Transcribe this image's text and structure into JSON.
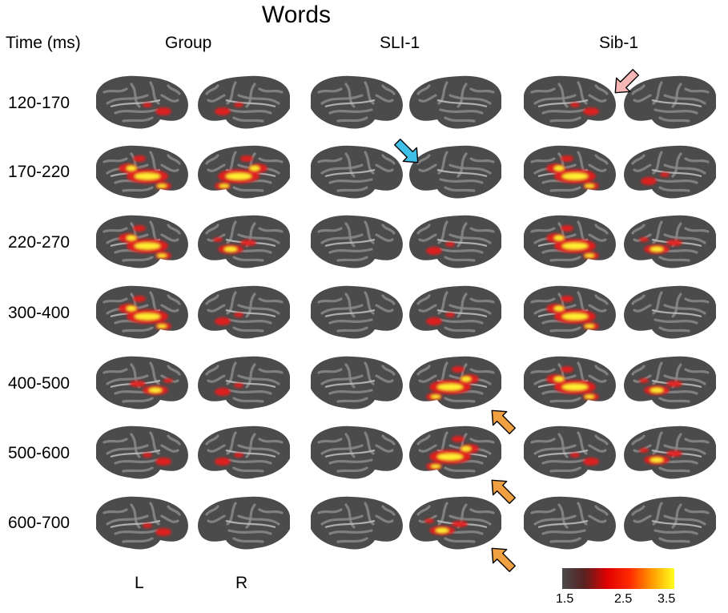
{
  "title": "Words",
  "time_header": "Time (ms)",
  "columns": [
    "Group",
    "SLI-1",
    "Sib-1"
  ],
  "time_windows": [
    "120-170",
    "170-220",
    "220-270",
    "300-400",
    "400-500",
    "500-600",
    "600-700"
  ],
  "hemisphere_labels": {
    "left": "L",
    "right": "R"
  },
  "colorbar": {
    "ticks": [
      "1.5",
      "2.5",
      "3.5"
    ],
    "colors": [
      "#4a4a4a",
      "#5a2020",
      "#e00000",
      "#ff2a00",
      "#ff9a00",
      "#ffff20"
    ]
  },
  "colors": {
    "cortex_dark": "#4b4b4b",
    "cortex_light": "#8a8a8a",
    "activation_red": "#e51a1a",
    "activation_yellow": "#ffee30",
    "arrow_pink": "#f6b6b6",
    "arrow_cyan": "#3fc0e8",
    "arrow_orange": "#f0a040"
  },
  "arrows": [
    {
      "name": "pink-arrow",
      "column": "Sib-1",
      "time": "120-170"
    },
    {
      "name": "cyan-arrow",
      "column": "SLI-1",
      "time": "170-220"
    },
    {
      "name": "orange-arrow",
      "column": "SLI-1",
      "time": "400-500"
    },
    {
      "name": "orange-arrow",
      "column": "SLI-1",
      "time": "500-600"
    },
    {
      "name": "orange-arrow",
      "column": "SLI-1",
      "time": "600-700"
    }
  ]
}
